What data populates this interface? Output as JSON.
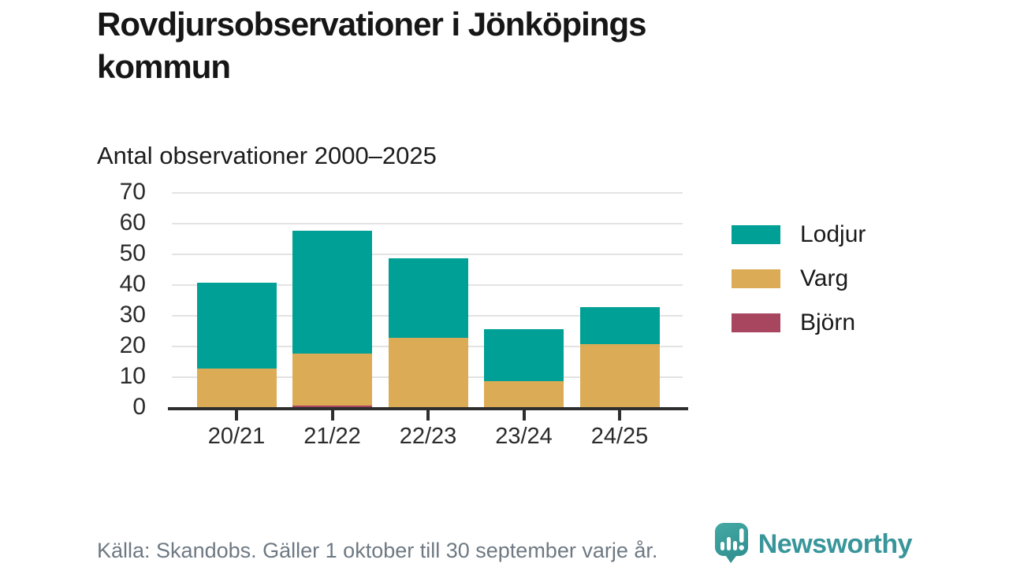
{
  "title": "Rovdjursobservationer i Jönköpings kommun",
  "subtitle": "Antal observationer 2000–2025",
  "footer": {
    "source": "Källa: Skandobs. Gäller 1 oktober till 30 september varje år."
  },
  "branding": {
    "name": "Newsworthy",
    "logo_icon": "newsworthy-speech-bubble-bar-chart-icon",
    "accent_color": "#38969a"
  },
  "colors": {
    "lodjur": "#00a096",
    "varg": "#dcab55",
    "bjorn": "#a8465f",
    "axis": "#2e2e2e",
    "gridline": "#e3e3e3",
    "footer_text": "#6e7983"
  },
  "chart_data": {
    "type": "bar",
    "stacked": true,
    "title": "Rovdjursobservationer i Jönköpings kommun",
    "subtitle": "Antal observationer 2000–2025",
    "categories": [
      "20/21",
      "21/22",
      "22/23",
      "23/24",
      "24/25"
    ],
    "series": [
      {
        "name": "Lodjur",
        "color": "#00a096",
        "values": [
          28,
          40,
          26,
          17,
          12
        ]
      },
      {
        "name": "Varg",
        "color": "#dcab55",
        "values": [
          13,
          17,
          23,
          9,
          21
        ]
      },
      {
        "name": "Björn",
        "color": "#a8465f",
        "values": [
          0,
          1,
          0,
          0,
          0
        ]
      }
    ],
    "stack_order_bottom_to_top": [
      "Björn",
      "Varg",
      "Lodjur"
    ],
    "totals": [
      41,
      58,
      49,
      26,
      33
    ],
    "xlabel": "",
    "ylabel": "",
    "ylim": [
      0,
      70
    ],
    "yticks": [
      0,
      10,
      20,
      30,
      40,
      50,
      60,
      70
    ],
    "grid": true,
    "legend_position": "right"
  }
}
